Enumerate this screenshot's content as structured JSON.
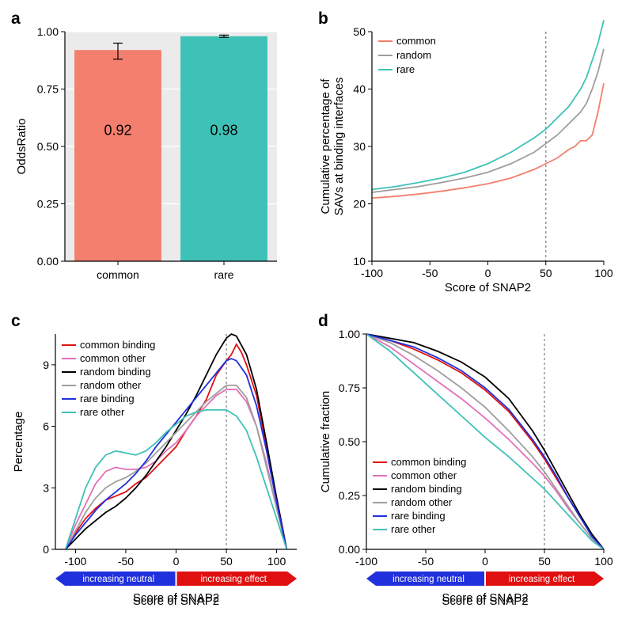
{
  "panel_a": {
    "label": "a",
    "type": "bar",
    "ylabel": "OddsRatio",
    "ylim": [
      0,
      1.0
    ],
    "yticks": [
      0.0,
      0.25,
      0.5,
      0.75,
      1.0
    ],
    "categories": [
      "common",
      "rare"
    ],
    "values": [
      0.92,
      0.98
    ],
    "value_labels": [
      "0.92",
      "0.98"
    ],
    "bar_colors": [
      "#f47f6e",
      "#3ec2b7"
    ],
    "error_low": [
      0.88,
      0.975
    ],
    "error_high": [
      0.95,
      0.985
    ],
    "bg": "#ebebeb",
    "grid_color": "#ffffff",
    "label_fontsize": 18
  },
  "panel_b": {
    "label": "b",
    "type": "line",
    "xlabel": "Score of SNAP2",
    "ylabel": "Cumulative percentage of\nSAVs at  binding interfaces",
    "xlim": [
      -100,
      100
    ],
    "ylim": [
      10,
      50
    ],
    "xticks": [
      -100,
      -50,
      0,
      50,
      100
    ],
    "yticks": [
      10,
      20,
      30,
      40,
      50
    ],
    "vline": 50,
    "bg": "#ffffff",
    "legend_position": "top-left",
    "series": [
      {
        "name": "common",
        "color": "#f47f6e",
        "x": [
          -100,
          -80,
          -60,
          -40,
          -20,
          0,
          20,
          40,
          50,
          60,
          70,
          75,
          80,
          85,
          90,
          95,
          100
        ],
        "y": [
          21,
          21.3,
          21.7,
          22.2,
          22.8,
          23.5,
          24.5,
          26,
          27,
          28,
          29.5,
          30,
          31,
          31,
          32,
          36,
          41
        ]
      },
      {
        "name": "random",
        "color": "#9e9e9e",
        "x": [
          -100,
          -80,
          -60,
          -40,
          -20,
          0,
          20,
          40,
          50,
          60,
          70,
          80,
          85,
          90,
          95,
          100
        ],
        "y": [
          22,
          22.5,
          23,
          23.7,
          24.5,
          25.5,
          27,
          29,
          30.5,
          32,
          34,
          36,
          37.5,
          40,
          43,
          47
        ]
      },
      {
        "name": "rare",
        "color": "#3ec2b7",
        "x": [
          -100,
          -80,
          -60,
          -40,
          -20,
          0,
          20,
          40,
          50,
          60,
          70,
          80,
          85,
          90,
          95,
          100
        ],
        "y": [
          22.5,
          23,
          23.7,
          24.5,
          25.5,
          27,
          29,
          31.5,
          33,
          35,
          37,
          40,
          42,
          45,
          48,
          52
        ]
      }
    ]
  },
  "panel_c": {
    "label": "c",
    "type": "line",
    "xlabel": "Score of SNAP2",
    "ylabel": "Percentage",
    "xlim": [
      -120,
      120
    ],
    "ylim": [
      0,
      10.5
    ],
    "xticks": [
      -100,
      -50,
      0,
      50,
      100
    ],
    "yticks": [
      0,
      3,
      6,
      9
    ],
    "vline": 50,
    "bg": "#ffffff",
    "arrows": {
      "neutral_label": "increasing neutral",
      "effect_label": "increasing effect",
      "neutral_color": "#2030dd",
      "effect_color": "#e01010"
    },
    "series": [
      {
        "name": "common  binding",
        "color": "#e01010",
        "x": [
          -110,
          -100,
          -90,
          -80,
          -70,
          -60,
          -50,
          -40,
          -30,
          -20,
          -10,
          0,
          10,
          20,
          30,
          40,
          50,
          55,
          60,
          65,
          70,
          80,
          90,
          100,
          110
        ],
        "y": [
          0,
          0.8,
          1.5,
          2.0,
          2.4,
          2.6,
          2.8,
          3.2,
          3.5,
          4.0,
          4.5,
          5.0,
          5.8,
          6.5,
          7.3,
          8.5,
          9.2,
          9.5,
          10.0,
          9.6,
          9.0,
          7.5,
          5.0,
          2.5,
          0
        ]
      },
      {
        "name": "common other",
        "color": "#e36fb9",
        "x": [
          -110,
          -100,
          -90,
          -80,
          -70,
          -60,
          -50,
          -40,
          -30,
          -20,
          -10,
          0,
          10,
          20,
          30,
          40,
          50,
          60,
          70,
          80,
          90,
          100,
          110
        ],
        "y": [
          0,
          1.2,
          2.2,
          3.2,
          3.8,
          4.0,
          3.9,
          3.9,
          4.0,
          4.3,
          4.8,
          5.2,
          5.8,
          6.5,
          7.0,
          7.5,
          7.8,
          7.8,
          7.2,
          6.0,
          4.2,
          2.0,
          0
        ]
      },
      {
        "name": "random  binding",
        "color": "#000000",
        "x": [
          -110,
          -100,
          -90,
          -80,
          -70,
          -60,
          -50,
          -40,
          -30,
          -20,
          -10,
          0,
          10,
          20,
          30,
          40,
          50,
          55,
          60,
          70,
          80,
          90,
          100,
          110
        ],
        "y": [
          0,
          0.5,
          1.0,
          1.4,
          1.8,
          2.1,
          2.5,
          3.0,
          3.6,
          4.3,
          5.0,
          5.8,
          6.6,
          7.5,
          8.5,
          9.5,
          10.3,
          10.5,
          10.4,
          9.5,
          7.8,
          5.2,
          2.5,
          0
        ]
      },
      {
        "name": "random other",
        "color": "#9e9e9e",
        "x": [
          -110,
          -100,
          -90,
          -80,
          -70,
          -60,
          -50,
          -40,
          -30,
          -20,
          -10,
          0,
          10,
          20,
          30,
          40,
          50,
          60,
          70,
          80,
          90,
          100,
          110
        ],
        "y": [
          0,
          0.9,
          1.8,
          2.5,
          3.0,
          3.3,
          3.5,
          3.8,
          4.2,
          4.7,
          5.2,
          5.7,
          6.2,
          6.7,
          7.2,
          7.6,
          8.0,
          8.0,
          7.4,
          6.0,
          4.0,
          2.0,
          0
        ]
      },
      {
        "name": "rare  binding",
        "color": "#2030dd",
        "x": [
          -110,
          -100,
          -90,
          -80,
          -70,
          -60,
          -50,
          -40,
          -30,
          -20,
          -10,
          0,
          10,
          20,
          30,
          40,
          50,
          55,
          60,
          70,
          80,
          90,
          100,
          110
        ],
        "y": [
          0,
          0.7,
          1.3,
          1.9,
          2.4,
          2.8,
          3.2,
          3.7,
          4.3,
          5.0,
          5.6,
          6.2,
          6.8,
          7.4,
          8.0,
          8.6,
          9.2,
          9.3,
          9.2,
          8.5,
          7.0,
          4.8,
          2.3,
          0
        ]
      },
      {
        "name": "rare other",
        "color": "#3ec2b7",
        "x": [
          -110,
          -100,
          -90,
          -80,
          -70,
          -60,
          -50,
          -40,
          -30,
          -20,
          -10,
          0,
          10,
          20,
          30,
          40,
          50,
          60,
          70,
          80,
          90,
          100,
          110
        ],
        "y": [
          0,
          1.5,
          3.0,
          4.0,
          4.6,
          4.8,
          4.7,
          4.6,
          4.8,
          5.2,
          5.7,
          6.1,
          6.5,
          6.7,
          6.8,
          6.8,
          6.8,
          6.5,
          5.8,
          4.5,
          3.0,
          1.5,
          0
        ]
      }
    ]
  },
  "panel_d": {
    "label": "d",
    "type": "line",
    "xlabel": "Score of SNAP2",
    "ylabel": "Cumulative fraction",
    "xlim": [
      -100,
      100
    ],
    "ylim": [
      0,
      1.0
    ],
    "xticks": [
      -100,
      -50,
      0,
      50,
      100
    ],
    "yticks": [
      0.0,
      0.25,
      0.5,
      0.75,
      1.0
    ],
    "vline": 50,
    "bg": "#ffffff",
    "arrows": {
      "neutral_label": "increasing neutral",
      "effect_label": "increasing effect",
      "neutral_color": "#2030dd",
      "effect_color": "#e01010"
    },
    "series": [
      {
        "name": "common  binding",
        "color": "#e01010",
        "x": [
          -100,
          -80,
          -60,
          -40,
          -20,
          0,
          20,
          40,
          50,
          60,
          70,
          80,
          90,
          100
        ],
        "y": [
          1.0,
          0.97,
          0.93,
          0.88,
          0.82,
          0.74,
          0.64,
          0.5,
          0.42,
          0.33,
          0.24,
          0.15,
          0.07,
          0.0
        ]
      },
      {
        "name": "common other",
        "color": "#e36fb9",
        "x": [
          -100,
          -80,
          -60,
          -40,
          -20,
          0,
          20,
          40,
          50,
          60,
          70,
          80,
          90,
          100
        ],
        "y": [
          1.0,
          0.94,
          0.86,
          0.78,
          0.7,
          0.61,
          0.51,
          0.4,
          0.34,
          0.27,
          0.19,
          0.12,
          0.05,
          0.0
        ]
      },
      {
        "name": "random  binding",
        "color": "#000000",
        "x": [
          -100,
          -80,
          -60,
          -40,
          -20,
          0,
          20,
          40,
          50,
          60,
          70,
          80,
          90,
          100
        ],
        "y": [
          1.0,
          0.98,
          0.96,
          0.92,
          0.87,
          0.8,
          0.7,
          0.55,
          0.46,
          0.36,
          0.26,
          0.16,
          0.07,
          0.0
        ]
      },
      {
        "name": "random other",
        "color": "#9e9e9e",
        "x": [
          -100,
          -80,
          -60,
          -40,
          -20,
          0,
          20,
          40,
          50,
          60,
          70,
          80,
          90,
          100
        ],
        "y": [
          1.0,
          0.96,
          0.9,
          0.83,
          0.75,
          0.66,
          0.55,
          0.43,
          0.36,
          0.28,
          0.2,
          0.12,
          0.05,
          0.0
        ]
      },
      {
        "name": "rare  binding",
        "color": "#2030dd",
        "x": [
          -100,
          -80,
          -60,
          -40,
          -20,
          0,
          20,
          40,
          50,
          60,
          70,
          80,
          90,
          100
        ],
        "y": [
          1.0,
          0.97,
          0.94,
          0.89,
          0.83,
          0.75,
          0.65,
          0.51,
          0.43,
          0.34,
          0.24,
          0.15,
          0.06,
          0.0
        ]
      },
      {
        "name": "rare other",
        "color": "#3ec2b7",
        "x": [
          -100,
          -80,
          -60,
          -40,
          -20,
          0,
          20,
          40,
          50,
          60,
          70,
          80,
          90,
          100
        ],
        "y": [
          1.0,
          0.92,
          0.82,
          0.72,
          0.62,
          0.52,
          0.43,
          0.33,
          0.28,
          0.22,
          0.16,
          0.1,
          0.04,
          0.0
        ]
      }
    ]
  }
}
